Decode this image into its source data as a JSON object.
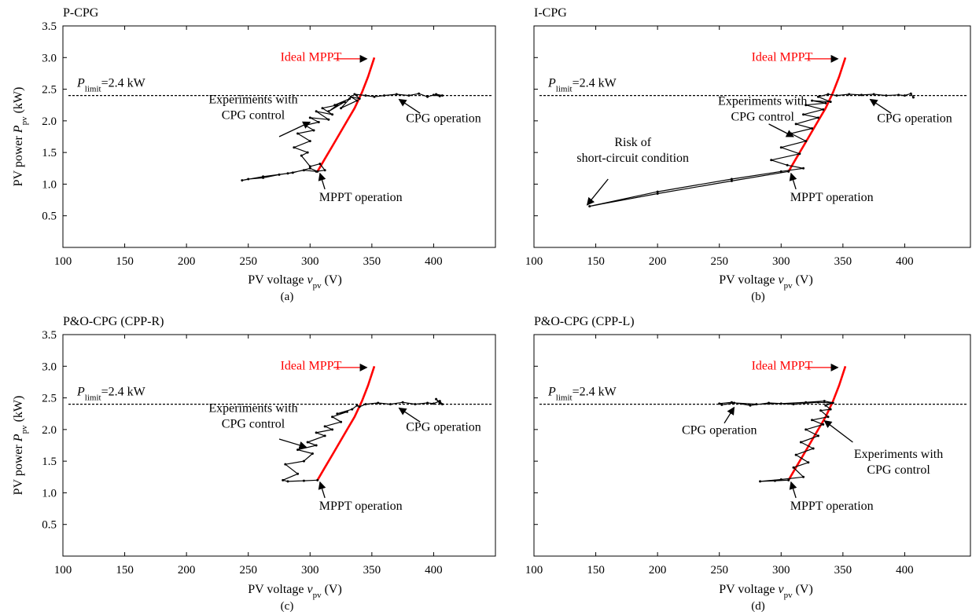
{
  "colors": {
    "ideal": "#ff0000",
    "experiment": "#000000",
    "limit_line": "#000000"
  },
  "chart_data": [
    {
      "type": "line",
      "title": "P-CPG",
      "caption": "(a)",
      "ylabel_parts": [
        "PV power ",
        "P",
        "pv",
        " (kW)"
      ],
      "xlabel_parts": [
        "PV voltage ",
        "v",
        "pv",
        " (V)"
      ],
      "xlim": [
        100,
        450
      ],
      "ylim": [
        0,
        3.5
      ],
      "xticks": [
        "100",
        "150",
        "200",
        "250",
        "300",
        "350",
        "400"
      ],
      "yticks": [
        "0.5",
        "1.0",
        "1.5",
        "2.0",
        "2.5",
        "3.0",
        "3.5"
      ],
      "show_yticks": true,
      "limit": {
        "value": 2.4,
        "label_parts": [
          "P",
          "limit",
          "=2.4 kW"
        ]
      },
      "series": [
        {
          "role": "ideal",
          "x": [
            306,
            312,
            318,
            324,
            330,
            336,
            342,
            347,
            352
          ],
          "y": [
            1.2,
            1.4,
            1.6,
            1.8,
            2.0,
            2.2,
            2.45,
            2.7,
            3.0
          ]
        },
        {
          "role": "experiment",
          "x": [
            306,
            300,
            286,
            275,
            262,
            250,
            245,
            262,
            282,
            295,
            305,
            312,
            308,
            300,
            293,
            298,
            287,
            300,
            290,
            303,
            296,
            307,
            300,
            315,
            305,
            318,
            310,
            322,
            315,
            328,
            320,
            332,
            325,
            338,
            333,
            340,
            336,
            345,
            352,
            360,
            370,
            380,
            388,
            395,
            400,
            405,
            402,
            407
          ],
          "y": [
            1.2,
            1.25,
            1.18,
            1.15,
            1.1,
            1.08,
            1.06,
            1.12,
            1.17,
            1.22,
            1.2,
            1.22,
            1.32,
            1.28,
            1.45,
            1.5,
            1.58,
            1.68,
            1.8,
            1.85,
            1.93,
            1.98,
            2.05,
            2.02,
            2.15,
            2.1,
            2.2,
            2.25,
            2.15,
            2.3,
            2.25,
            2.35,
            2.2,
            2.32,
            2.38,
            2.35,
            2.42,
            2.4,
            2.38,
            2.4,
            2.42,
            2.4,
            2.43,
            2.38,
            2.41,
            2.39,
            2.42,
            2.4
          ]
        }
      ],
      "annotations": [
        {
          "id": "ideal",
          "lines": [
            "Ideal MPPT"
          ],
          "tx": 276,
          "ty": 2.95,
          "anchor": "start",
          "red": true,
          "arrow": [
            319,
            2.98,
            346,
            2.98
          ]
        },
        {
          "id": "exp",
          "lines": [
            "Experiments with",
            "CPG control"
          ],
          "tx": 254,
          "ty": 2.28,
          "anchor": "middle",
          "arrow": [
            275,
            1.75,
            300,
            1.98
          ]
        },
        {
          "id": "cpg",
          "lines": [
            "CPG operation"
          ],
          "tx": 408,
          "ty": 1.98,
          "anchor": "middle",
          "arrow": [
            389,
            2.12,
            372,
            2.34
          ]
        },
        {
          "id": "mppt",
          "lines": [
            "MPPT operation"
          ],
          "tx": 341,
          "ty": 0.73,
          "anchor": "middle",
          "arrow": [
            312,
            0.92,
            308,
            1.17
          ]
        }
      ]
    },
    {
      "type": "line",
      "title": "I-CPG",
      "caption": "(b)",
      "ylabel_parts": [],
      "xlabel_parts": [
        "PV voltage ",
        "v",
        "pv",
        " (V)"
      ],
      "xlim": [
        100,
        450
      ],
      "ylim": [
        0,
        3.5
      ],
      "xticks": [
        "100",
        "150",
        "200",
        "250",
        "300",
        "350",
        "400"
      ],
      "yticks": [],
      "show_yticks": false,
      "limit": {
        "value": 2.4,
        "label_parts": [
          "P",
          "limit",
          "=2.4 kW"
        ]
      },
      "series": [
        {
          "role": "ideal",
          "x": [
            306,
            312,
            318,
            324,
            330,
            336,
            342,
            347,
            352
          ],
          "y": [
            1.2,
            1.4,
            1.6,
            1.8,
            2.0,
            2.2,
            2.45,
            2.7,
            3.0
          ]
        },
        {
          "role": "experiment",
          "x": [
            306,
            260,
            200,
            145,
            200,
            260,
            300,
            318,
            305,
            292,
            315,
            300,
            320,
            308,
            325,
            312,
            330,
            318,
            334,
            320,
            336,
            325,
            340,
            330,
            338,
            345,
            355,
            365,
            375,
            385,
            395,
            400,
            405,
            407
          ],
          "y": [
            1.2,
            1.05,
            0.85,
            0.65,
            0.88,
            1.08,
            1.2,
            1.25,
            1.3,
            1.38,
            1.48,
            1.58,
            1.68,
            1.8,
            1.88,
            1.95,
            2.05,
            2.1,
            2.18,
            2.25,
            2.28,
            2.32,
            2.3,
            2.38,
            2.42,
            2.4,
            2.42,
            2.41,
            2.42,
            2.4,
            2.41,
            2.4,
            2.43,
            2.37
          ]
        }
      ],
      "annotations": [
        {
          "id": "ideal",
          "lines": [
            "Ideal MPPT"
          ],
          "tx": 276,
          "ty": 2.95,
          "anchor": "start",
          "red": true,
          "arrow": [
            319,
            2.98,
            346,
            2.98
          ]
        },
        {
          "id": "exp",
          "lines": [
            "Experiments with",
            "CPG control"
          ],
          "tx": 285,
          "ty": 2.25,
          "anchor": "middle",
          "arrow": [
            290,
            1.95,
            310,
            1.75
          ]
        },
        {
          "id": "cpg",
          "lines": [
            "CPG operation"
          ],
          "tx": 408,
          "ty": 1.98,
          "anchor": "middle",
          "arrow": [
            389,
            2.12,
            372,
            2.34
          ]
        },
        {
          "id": "risk",
          "lines": [
            "Risk of",
            "short-circuit condition"
          ],
          "tx": 180,
          "ty": 1.6,
          "anchor": "middle",
          "arrow": [
            160,
            1.08,
            143,
            0.67
          ]
        },
        {
          "id": "mppt",
          "lines": [
            "MPPT operation"
          ],
          "tx": 341,
          "ty": 0.73,
          "anchor": "middle",
          "arrow": [
            312,
            0.92,
            308,
            1.17
          ]
        }
      ]
    },
    {
      "type": "line",
      "title": "P&O-CPG (CPP-R)",
      "caption": "(c)",
      "ylabel_parts": [
        "PV power ",
        "P",
        "pv",
        " (kW)"
      ],
      "xlabel_parts": [
        "PV voltage ",
        "v",
        "pv",
        " (V)"
      ],
      "xlim": [
        100,
        450
      ],
      "ylim": [
        0,
        3.5
      ],
      "xticks": [
        "100",
        "150",
        "200",
        "250",
        "300",
        "350",
        "400"
      ],
      "yticks": [
        "0.5",
        "1.0",
        "1.5",
        "2.0",
        "2.5",
        "3.0",
        "3.5"
      ],
      "show_yticks": true,
      "limit": {
        "value": 2.4,
        "label_parts": [
          "P",
          "limit",
          "=2.4 kW"
        ]
      },
      "series": [
        {
          "role": "ideal",
          "x": [
            306,
            312,
            318,
            324,
            330,
            336,
            342,
            347,
            352
          ],
          "y": [
            1.2,
            1.4,
            1.6,
            1.8,
            2.0,
            2.2,
            2.45,
            2.7,
            3.0
          ]
        },
        {
          "role": "experiment",
          "x": [
            306,
            295,
            282,
            278,
            290,
            280,
            295,
            302,
            290,
            305,
            298,
            312,
            305,
            318,
            312,
            325,
            318,
            330,
            322,
            334,
            338,
            340,
            345,
            355,
            365,
            375,
            385,
            395,
            400,
            405,
            407,
            402,
            405
          ],
          "y": [
            1.2,
            1.19,
            1.18,
            1.2,
            1.3,
            1.45,
            1.5,
            1.62,
            1.68,
            1.75,
            1.8,
            1.9,
            1.95,
            2.0,
            2.05,
            2.12,
            2.2,
            2.28,
            2.25,
            2.32,
            2.38,
            2.36,
            2.4,
            2.42,
            2.4,
            2.43,
            2.4,
            2.42,
            2.41,
            2.45,
            2.4,
            2.48,
            2.41
          ]
        }
      ],
      "annotations": [
        {
          "id": "ideal",
          "lines": [
            "Ideal MPPT"
          ],
          "tx": 276,
          "ty": 2.95,
          "anchor": "start",
          "red": true,
          "arrow": [
            319,
            2.98,
            346,
            2.98
          ]
        },
        {
          "id": "exp",
          "lines": [
            "Experiments with",
            "CPG control"
          ],
          "tx": 254,
          "ty": 2.28,
          "anchor": "middle",
          "arrow": [
            275,
            1.85,
            297,
            1.72
          ]
        },
        {
          "id": "cpg",
          "lines": [
            "CPG operation"
          ],
          "tx": 408,
          "ty": 1.98,
          "anchor": "middle",
          "arrow": [
            389,
            2.12,
            372,
            2.34
          ]
        },
        {
          "id": "mppt",
          "lines": [
            "MPPT operation"
          ],
          "tx": 341,
          "ty": 0.73,
          "anchor": "middle",
          "arrow": [
            312,
            0.92,
            308,
            1.17
          ]
        }
      ]
    },
    {
      "type": "line",
      "title": "P&O-CPG (CPP-L)",
      "caption": "(d)",
      "ylabel_parts": [],
      "xlabel_parts": [
        "PV voltage ",
        "v",
        "pv",
        " (V)"
      ],
      "xlim": [
        100,
        450
      ],
      "ylim": [
        0,
        3.5
      ],
      "xticks": [
        "100",
        "150",
        "200",
        "250",
        "300",
        "350",
        "400"
      ],
      "yticks": [],
      "show_yticks": false,
      "limit": {
        "value": 2.4,
        "label_parts": [
          "P",
          "limit",
          "=2.4 kW"
        ]
      },
      "series": [
        {
          "role": "ideal",
          "x": [
            306,
            312,
            318,
            324,
            330,
            336,
            342,
            347,
            352
          ],
          "y": [
            1.2,
            1.4,
            1.6,
            1.8,
            2.0,
            2.2,
            2.45,
            2.7,
            3.0
          ]
        },
        {
          "role": "experiment",
          "x": [
            306,
            295,
            283,
            300,
            318,
            310,
            322,
            312,
            326,
            316,
            330,
            320,
            334,
            325,
            338,
            332,
            340,
            336,
            342,
            335,
            320,
            300,
            280,
            262,
            252,
            250,
            260,
            275,
            290,
            310,
            330,
            340
          ],
          "y": [
            1.2,
            1.19,
            1.18,
            1.21,
            1.25,
            1.4,
            1.48,
            1.6,
            1.7,
            1.8,
            1.9,
            2.0,
            2.08,
            2.15,
            2.2,
            2.3,
            2.32,
            2.38,
            2.42,
            2.45,
            2.43,
            2.41,
            2.4,
            2.42,
            2.39,
            2.41,
            2.43,
            2.38,
            2.42,
            2.4,
            2.43,
            2.42
          ]
        }
      ],
      "annotations": [
        {
          "id": "ideal",
          "lines": [
            "Ideal MPPT"
          ],
          "tx": 276,
          "ty": 2.95,
          "anchor": "start",
          "red": true,
          "arrow": [
            319,
            2.98,
            346,
            2.98
          ]
        },
        {
          "id": "cpg",
          "lines": [
            "CPG operation"
          ],
          "tx": 250,
          "ty": 1.93,
          "anchor": "middle",
          "arrow": [
            254,
            2.1,
            262,
            2.35
          ]
        },
        {
          "id": "exp",
          "lines": [
            "Experiments with",
            "CPG control"
          ],
          "tx": 395,
          "ty": 1.55,
          "anchor": "middle",
          "arrow": [
            358,
            1.8,
            335,
            2.14
          ]
        },
        {
          "id": "mppt",
          "lines": [
            "MPPT operation"
          ],
          "tx": 341,
          "ty": 0.73,
          "anchor": "middle",
          "arrow": [
            312,
            0.92,
            308,
            1.17
          ]
        }
      ]
    }
  ]
}
